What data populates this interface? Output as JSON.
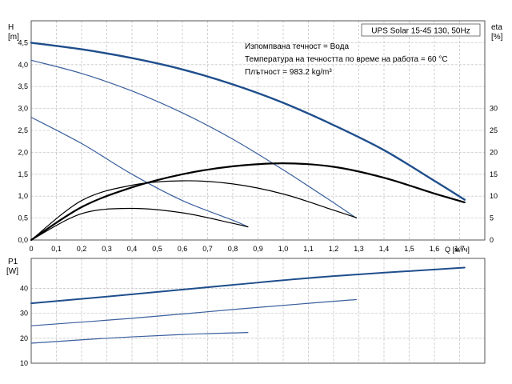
{
  "chart_data": [
    {
      "type": "line",
      "title": "UPS Solar 15-45 130, 50Hz",
      "annotations": [
        "Изпомпвана течност = Вода",
        "Температура на течността по време на работа = 60 °C",
        "Плътност = 983.2 kg/m³"
      ],
      "xlabel": "Q [м³/ч]",
      "ylabel_line1": "H",
      "ylabel_line2": "[m]",
      "y2label_line1": "eta",
      "y2label_line2": "[%]",
      "xlim": [
        0,
        1.8
      ],
      "ylim": [
        0,
        5
      ],
      "y2lim": [
        0,
        50
      ],
      "xticks": [
        "0",
        "0,1",
        "0,2",
        "0,3",
        "0,4",
        "0,5",
        "0,6",
        "0,7",
        "0,8",
        "0,9",
        "1,0",
        "1,1",
        "1,2",
        "1,3",
        "1,4",
        "1,5",
        "1,6",
        "1,7"
      ],
      "yticks": [
        "0,0",
        "0,5",
        "1,0",
        "1,5",
        "2,0",
        "2,5",
        "3,0",
        "3,5",
        "4,0",
        "4,5"
      ],
      "y2ticks": [
        "0",
        "5",
        "10",
        "15",
        "20",
        "25",
        "30"
      ],
      "grid": true,
      "series": [
        {
          "axis": "H",
          "color": "#1f4e8c",
          "width": 2.4,
          "x": [
            0,
            0.2,
            0.4,
            0.6,
            0.8,
            1.0,
            1.2,
            1.4,
            1.6,
            1.72
          ],
          "values": [
            4.5,
            4.35,
            4.15,
            3.89,
            3.55,
            3.13,
            2.62,
            2.05,
            1.35,
            0.92
          ]
        },
        {
          "axis": "H",
          "color": "#3a5f9e",
          "width": 1.2,
          "x": [
            0,
            0.2,
            0.4,
            0.6,
            0.8,
            1.0,
            1.2,
            1.29
          ],
          "values": [
            4.1,
            3.8,
            3.4,
            2.9,
            2.3,
            1.6,
            0.85,
            0.5
          ]
        },
        {
          "axis": "H",
          "color": "#3a5f9e",
          "width": 1.2,
          "x": [
            0,
            0.2,
            0.4,
            0.6,
            0.8,
            0.86
          ],
          "values": [
            2.8,
            2.2,
            1.5,
            0.9,
            0.45,
            0.3
          ]
        },
        {
          "axis": "eta",
          "color": "#000000",
          "width": 2.2,
          "x": [
            0,
            0.2,
            0.4,
            0.6,
            0.8,
            1.0,
            1.2,
            1.4,
            1.6,
            1.72
          ],
          "values": [
            0,
            7.5,
            12,
            15,
            16.8,
            17.5,
            16.7,
            14.2,
            10.6,
            8.6
          ]
        },
        {
          "axis": "eta",
          "color": "#000000",
          "width": 1.2,
          "x": [
            0,
            0.2,
            0.4,
            0.6,
            0.8,
            1.0,
            1.2,
            1.29
          ],
          "values": [
            0,
            9,
            12.5,
            13.5,
            12.8,
            10.5,
            6.8,
            5.1
          ]
        },
        {
          "axis": "eta",
          "color": "#000000",
          "width": 1.2,
          "x": [
            0,
            0.2,
            0.4,
            0.6,
            0.8,
            0.86
          ],
          "values": [
            0,
            6,
            7.2,
            6.2,
            3.8,
            3.0
          ]
        }
      ]
    },
    {
      "type": "line",
      "ylabel_line1": "P1",
      "ylabel_line2": "[W]",
      "xlim": [
        0,
        1.8
      ],
      "ylim": [
        10,
        52
      ],
      "yticks": [
        "10",
        "20",
        "30",
        "40"
      ],
      "grid": true,
      "series": [
        {
          "color": "#1f4e8c",
          "width": 2.0,
          "x": [
            0,
            0.4,
            0.8,
            1.2,
            1.72
          ],
          "values": [
            34,
            37.6,
            41.4,
            44.9,
            48.3
          ]
        },
        {
          "color": "#3a5f9e",
          "width": 1.2,
          "x": [
            0,
            0.4,
            0.8,
            1.2,
            1.29
          ],
          "values": [
            25,
            28,
            31.5,
            34.8,
            35.5
          ]
        },
        {
          "color": "#3a5f9e",
          "width": 1.2,
          "x": [
            0,
            0.3,
            0.6,
            0.86
          ],
          "values": [
            18,
            20,
            21.5,
            22.3
          ]
        }
      ]
    }
  ]
}
